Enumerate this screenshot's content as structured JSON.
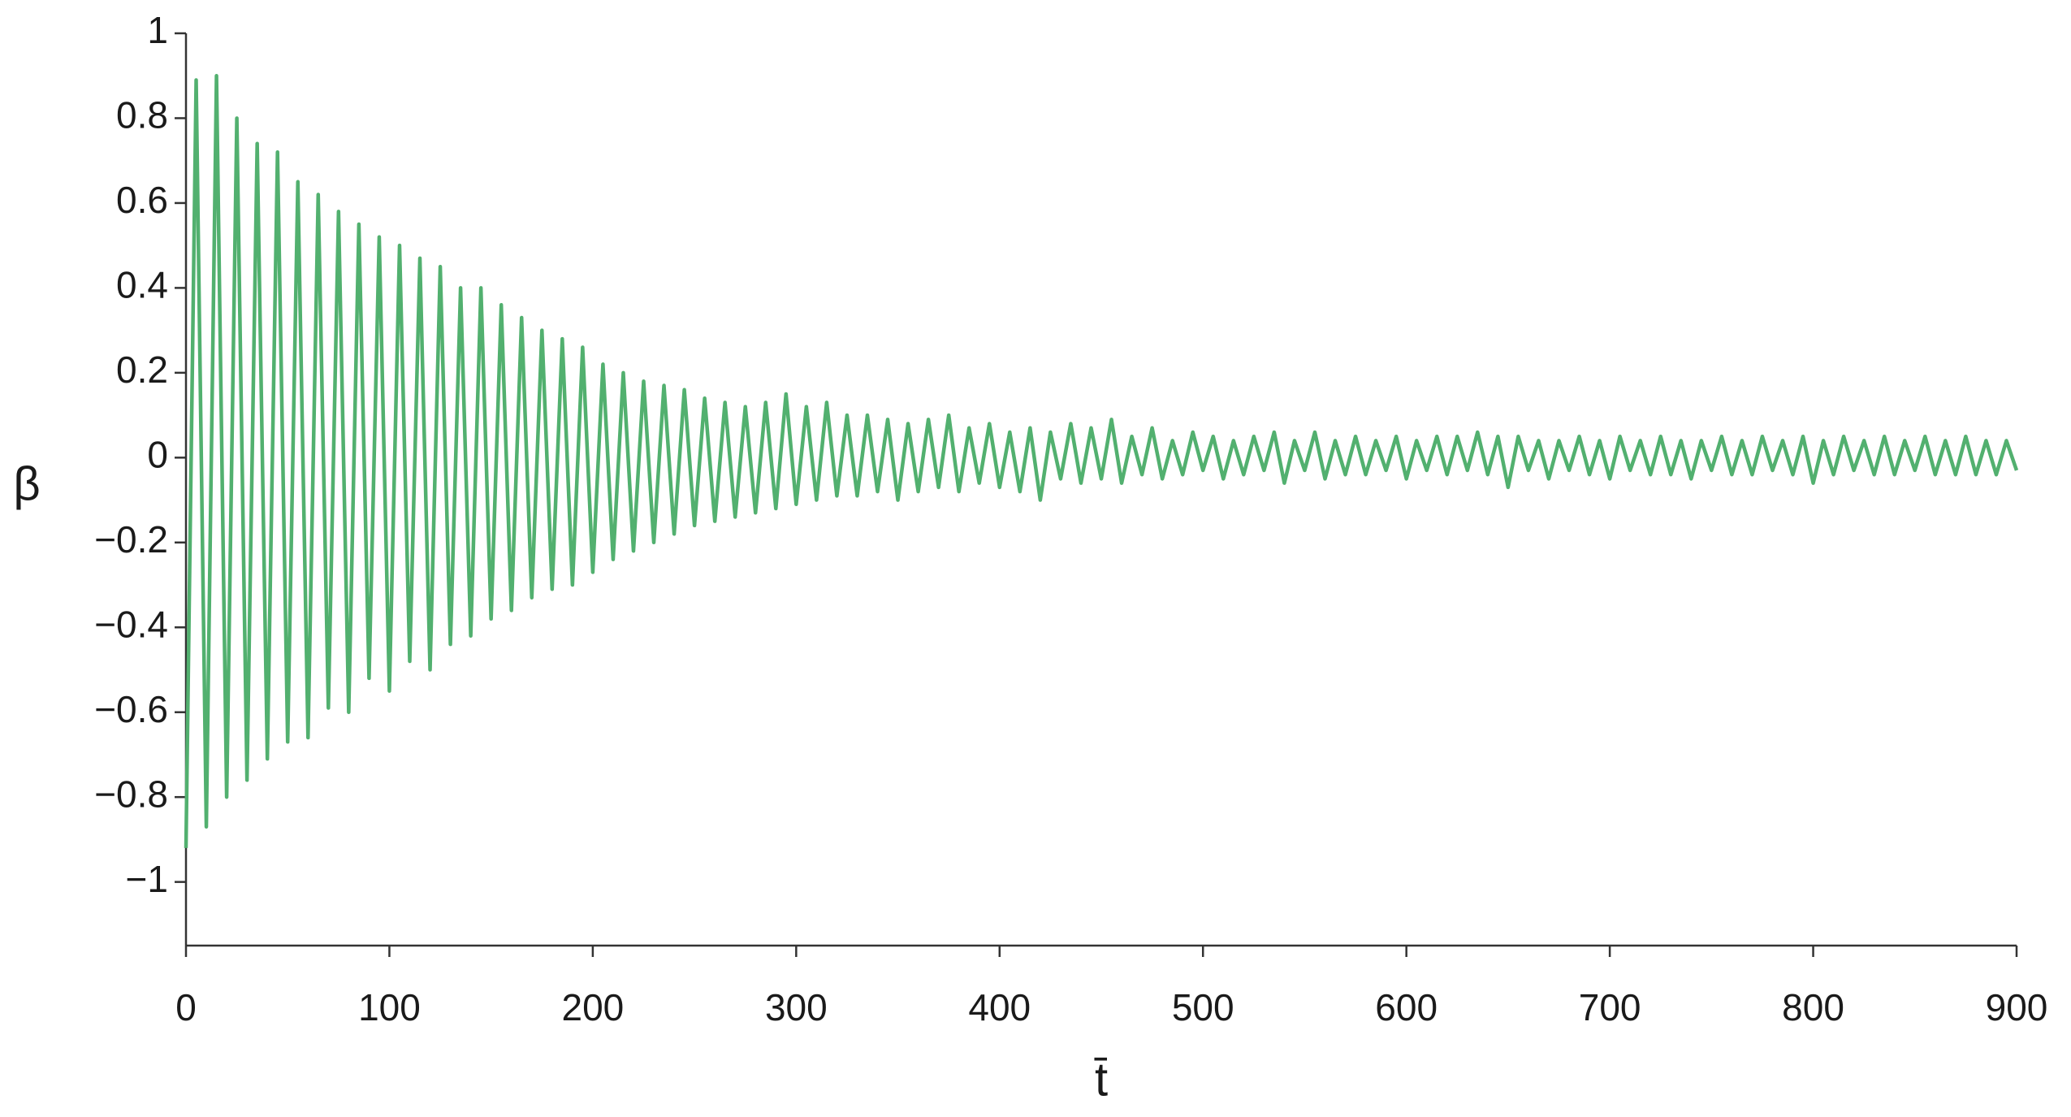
{
  "chart_data": {
    "type": "line",
    "x_label": "t̄",
    "y_label": "β",
    "xlim": [
      0,
      900
    ],
    "ylim": [
      -1.15,
      1
    ],
    "xticks": [
      0,
      100,
      200,
      300,
      400,
      500,
      600,
      700,
      800,
      900
    ],
    "yticks": [
      1,
      0.8,
      0.6,
      0.4,
      0.2,
      0,
      {
        "value": -0.2,
        "label": "−0.2"
      },
      {
        "value": -0.4,
        "label": "−0.4"
      },
      {
        "value": -0.6,
        "label": "−0.6"
      },
      {
        "value": -0.8,
        "label": "−0.8"
      },
      {
        "value": -1,
        "label": "−1"
      }
    ],
    "grid": false,
    "x": [
      0,
      5,
      10,
      15,
      20,
      25,
      30,
      35,
      40,
      45,
      50,
      55,
      60,
      65,
      70,
      75,
      80,
      85,
      90,
      95,
      100,
      105,
      110,
      115,
      120,
      125,
      130,
      135,
      140,
      145,
      150,
      155,
      160,
      165,
      170,
      175,
      180,
      185,
      190,
      195,
      200,
      205,
      210,
      215,
      220,
      225,
      230,
      235,
      240,
      245,
      250,
      255,
      260,
      265,
      270,
      275,
      280,
      285,
      290,
      295,
      300,
      305,
      310,
      315,
      320,
      325,
      330,
      335,
      340,
      345,
      350,
      355,
      360,
      365,
      370,
      375,
      380,
      385,
      390,
      395,
      400,
      405,
      410,
      415,
      420,
      425,
      430,
      435,
      440,
      445,
      450,
      455,
      460,
      465,
      470,
      475,
      480,
      485,
      490,
      495,
      500,
      505,
      510,
      515,
      520,
      525,
      530,
      535,
      540,
      545,
      550,
      555,
      560,
      565,
      570,
      575,
      580,
      585,
      590,
      595,
      600,
      605,
      610,
      615,
      620,
      625,
      630,
      635,
      640,
      645,
      650,
      655,
      660,
      665,
      670,
      675,
      680,
      685,
      690,
      695,
      700,
      705,
      710,
      715,
      720,
      725,
      730,
      735,
      740,
      745,
      750,
      755,
      760,
      765,
      770,
      775,
      780,
      785,
      790,
      795,
      800,
      805,
      810,
      815,
      820,
      825,
      830,
      835,
      840,
      845,
      850,
      855,
      860,
      865,
      870,
      875,
      880,
      885,
      890,
      895,
      900
    ],
    "series": [
      {
        "name": "β",
        "color": "#52b06f",
        "values": [
          -0.92,
          0.89,
          -0.87,
          0.9,
          -0.8,
          0.8,
          -0.76,
          0.74,
          -0.71,
          0.72,
          -0.67,
          0.65,
          -0.66,
          0.62,
          -0.59,
          0.58,
          -0.6,
          0.55,
          -0.52,
          0.52,
          -0.55,
          0.5,
          -0.48,
          0.47,
          -0.5,
          0.45,
          -0.44,
          0.4,
          -0.42,
          0.4,
          -0.38,
          0.36,
          -0.36,
          0.33,
          -0.33,
          0.3,
          -0.31,
          0.28,
          -0.3,
          0.26,
          -0.27,
          0.22,
          -0.24,
          0.2,
          -0.22,
          0.18,
          -0.2,
          0.17,
          -0.18,
          0.16,
          -0.16,
          0.14,
          -0.15,
          0.13,
          -0.14,
          0.12,
          -0.13,
          0.13,
          -0.12,
          0.15,
          -0.11,
          0.12,
          -0.1,
          0.13,
          -0.09,
          0.1,
          -0.09,
          0.1,
          -0.08,
          0.09,
          -0.1,
          0.08,
          -0.08,
          0.09,
          -0.07,
          0.1,
          -0.08,
          0.07,
          -0.06,
          0.08,
          -0.07,
          0.06,
          -0.08,
          0.07,
          -0.1,
          0.06,
          -0.05,
          0.08,
          -0.06,
          0.07,
          -0.05,
          0.09,
          -0.06,
          0.05,
          -0.04,
          0.07,
          -0.05,
          0.04,
          -0.04,
          0.06,
          -0.03,
          0.05,
          -0.05,
          0.04,
          -0.04,
          0.05,
          -0.03,
          0.06,
          -0.06,
          0.04,
          -0.03,
          0.06,
          -0.05,
          0.04,
          -0.04,
          0.05,
          -0.04,
          0.04,
          -0.03,
          0.05,
          -0.05,
          0.04,
          -0.03,
          0.05,
          -0.04,
          0.05,
          -0.03,
          0.06,
          -0.04,
          0.05,
          -0.07,
          0.05,
          -0.03,
          0.04,
          -0.05,
          0.04,
          -0.03,
          0.05,
          -0.04,
          0.04,
          -0.05,
          0.05,
          -0.03,
          0.04,
          -0.04,
          0.05,
          -0.04,
          0.04,
          -0.05,
          0.04,
          -0.03,
          0.05,
          -0.04,
          0.04,
          -0.04,
          0.05,
          -0.03,
          0.04,
          -0.04,
          0.05,
          -0.06,
          0.04,
          -0.04,
          0.05,
          -0.03,
          0.04,
          -0.04,
          0.05,
          -0.04,
          0.04,
          -0.03,
          0.05,
          -0.04,
          0.04,
          -0.04,
          0.05,
          -0.04,
          0.04,
          -0.04,
          0.04,
          -0.03
        ]
      }
    ]
  }
}
